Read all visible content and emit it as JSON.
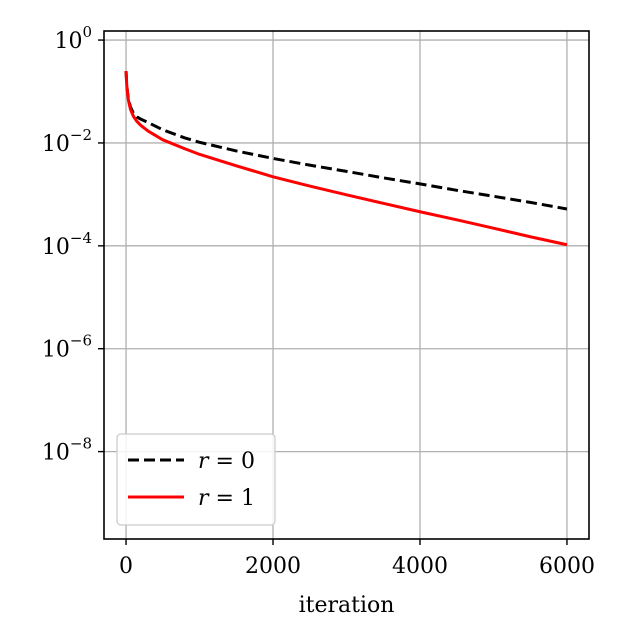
{
  "chart_data": {
    "type": "line",
    "xlabel": "iteration",
    "ylabel": "",
    "xlim": [
      -300,
      6300
    ],
    "ylim": [
      2e-10,
      1.5
    ],
    "yscale": "log",
    "grid": true,
    "legend_position": "lower-left",
    "x_ticks": [
      {
        "value": 0,
        "label": "0"
      },
      {
        "value": 2000,
        "label": "2000"
      },
      {
        "value": 4000,
        "label": "4000"
      },
      {
        "value": 6000,
        "label": "6000"
      }
    ],
    "y_ticks": [
      {
        "value": 1,
        "base": "10",
        "exp": "0"
      },
      {
        "value": 0.01,
        "base": "10",
        "exp": "−2"
      },
      {
        "value": 0.0001,
        "base": "10",
        "exp": "−4"
      },
      {
        "value": 1e-06,
        "base": "10",
        "exp": "−6"
      },
      {
        "value": 1e-08,
        "base": "10",
        "exp": "−8"
      }
    ],
    "series": [
      {
        "name": "r = 0",
        "name_var": "r",
        "name_rest": " = 0",
        "color": "#000000",
        "style": "dashed",
        "x": [
          0,
          10,
          30,
          60,
          100,
          150,
          200,
          300,
          500,
          800,
          1000,
          1500,
          2000,
          2500,
          3000,
          3500,
          4000,
          4500,
          5000,
          5500,
          6000
        ],
        "y": [
          0.25,
          0.13,
          0.075,
          0.05,
          0.038,
          0.032,
          0.029,
          0.025,
          0.018,
          0.0125,
          0.0103,
          0.007,
          0.005,
          0.0037,
          0.0028,
          0.0021,
          0.0016,
          0.0012,
          0.00092,
          0.0007,
          0.00052
        ]
      },
      {
        "name": "r = 1",
        "name_var": "r",
        "name_rest": " = 1",
        "color": "#ff0000",
        "style": "solid",
        "x": [
          0,
          10,
          30,
          60,
          100,
          150,
          200,
          300,
          500,
          800,
          1000,
          1500,
          2000,
          2500,
          3000,
          3500,
          4000,
          4500,
          5000,
          5500,
          6000
        ],
        "y": [
          0.25,
          0.13,
          0.07,
          0.045,
          0.033,
          0.026,
          0.022,
          0.017,
          0.0115,
          0.0077,
          0.006,
          0.0036,
          0.0022,
          0.00145,
          0.00098,
          0.00067,
          0.00046,
          0.00032,
          0.00022,
          0.00015,
          0.000105
        ]
      }
    ]
  }
}
